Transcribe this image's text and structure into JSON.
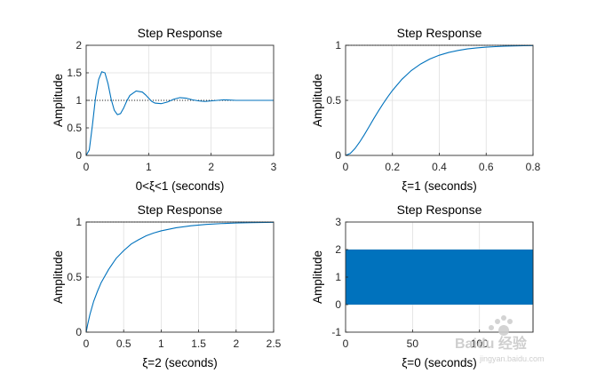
{
  "chart_data": [
    {
      "type": "line",
      "title": "Step Response",
      "xlabel": "0<ξ<1 (seconds)",
      "ylabel": "Amplitude",
      "xlim": [
        0,
        3
      ],
      "ylim": [
        0,
        2
      ],
      "xticks": [
        0,
        1,
        2,
        3
      ],
      "yticks": [
        0,
        0.5,
        1,
        1.5,
        2
      ],
      "xtick_labels": [
        "0",
        "1",
        "2",
        "3"
      ],
      "ytick_labels": [
        "0",
        "0.5",
        "1",
        "1.5",
        "2"
      ],
      "grid": true,
      "reference_line": 1,
      "color": "#0072BD",
      "series": [
        {
          "x": [
            0,
            0.05,
            0.1,
            0.15,
            0.2,
            0.25,
            0.3,
            0.35,
            0.4,
            0.45,
            0.5,
            0.55,
            0.6,
            0.65,
            0.7,
            0.8,
            0.9,
            0.95,
            1.0,
            1.05,
            1.1,
            1.2,
            1.3,
            1.4,
            1.5,
            1.6,
            1.7,
            1.8,
            1.9,
            2.0,
            2.2,
            2.4,
            2.6,
            2.8,
            3.0
          ],
          "y": [
            0,
            0.1,
            0.55,
            1.05,
            1.38,
            1.52,
            1.5,
            1.3,
            1.02,
            0.82,
            0.74,
            0.76,
            0.86,
            0.99,
            1.09,
            1.17,
            1.15,
            1.1,
            1.04,
            0.98,
            0.95,
            0.94,
            0.97,
            1.02,
            1.05,
            1.04,
            1.01,
            0.99,
            0.98,
            0.99,
            1.01,
            1.0,
            1.0,
            1.0,
            1.0
          ]
        }
      ]
    },
    {
      "type": "line",
      "title": "Step Response",
      "xlabel": "ξ=1 (seconds)",
      "ylabel": "Amplitude",
      "xlim": [
        0,
        0.8
      ],
      "ylim": [
        0,
        1
      ],
      "xticks": [
        0,
        0.2,
        0.4,
        0.6,
        0.8
      ],
      "yticks": [
        0,
        0.5,
        1
      ],
      "xtick_labels": [
        "0",
        "0.2",
        "0.4",
        "0.6",
        "0.8"
      ],
      "ytick_labels": [
        "0",
        "0.5",
        "1"
      ],
      "grid": true,
      "reference_line": 1,
      "color": "#0072BD",
      "series": [
        {
          "x": [
            0,
            0.02,
            0.04,
            0.06,
            0.08,
            0.1,
            0.12,
            0.14,
            0.16,
            0.18,
            0.2,
            0.24,
            0.28,
            0.32,
            0.36,
            0.4,
            0.44,
            0.48,
            0.52,
            0.56,
            0.6,
            0.64,
            0.68,
            0.72,
            0.76,
            0.8
          ],
          "y": [
            0,
            0.018,
            0.062,
            0.121,
            0.188,
            0.26,
            0.333,
            0.403,
            0.469,
            0.532,
            0.59,
            0.69,
            0.77,
            0.83,
            0.876,
            0.91,
            0.935,
            0.953,
            0.967,
            0.976,
            0.983,
            0.988,
            0.992,
            0.994,
            0.996,
            0.997
          ]
        }
      ]
    },
    {
      "type": "line",
      "title": "Step Response",
      "xlabel": "ξ=2 (seconds)",
      "ylabel": "Amplitude",
      "xlim": [
        0,
        2.5
      ],
      "ylim": [
        0,
        1
      ],
      "xticks": [
        0,
        0.5,
        1,
        1.5,
        2,
        2.5
      ],
      "yticks": [
        0,
        0.5,
        1
      ],
      "xtick_labels": [
        "0",
        "0.5",
        "1",
        "1.5",
        "2",
        "2.5"
      ],
      "ytick_labels": [
        "0",
        "0.5",
        "1"
      ],
      "grid": true,
      "reference_line": 1,
      "color": "#0072BD",
      "series": [
        {
          "x": [
            0,
            0.02,
            0.05,
            0.1,
            0.15,
            0.2,
            0.3,
            0.4,
            0.5,
            0.6,
            0.7,
            0.8,
            0.9,
            1.0,
            1.2,
            1.4,
            1.6,
            1.8,
            2.0,
            2.2,
            2.5
          ],
          "y": [
            0,
            0.07,
            0.16,
            0.28,
            0.37,
            0.45,
            0.57,
            0.67,
            0.74,
            0.8,
            0.84,
            0.875,
            0.9,
            0.92,
            0.948,
            0.966,
            0.978,
            0.986,
            0.991,
            0.994,
            0.997
          ]
        }
      ]
    },
    {
      "type": "line",
      "title": "Step Response",
      "xlabel": "ξ=0 (seconds)",
      "ylabel": "Amplitude",
      "xlim": [
        0,
        140
      ],
      "ylim": [
        -1,
        3
      ],
      "xticks": [
        0,
        50,
        100
      ],
      "yticks": [
        -1,
        0,
        1,
        2,
        3
      ],
      "xtick_labels": [
        "0",
        "50",
        "100"
      ],
      "ytick_labels": [
        "-1",
        "0",
        "1",
        "2",
        "3"
      ],
      "grid": true,
      "color": "#0072BD",
      "note": "undamped oscillation between 0 and 2 over the whole span, drawn as a solid band",
      "band": {
        "x_start": 0,
        "x_end": 140,
        "y_min": 0,
        "y_max": 2
      }
    }
  ],
  "watermark": {
    "text": "Baidu 经验",
    "sub": "jingyan.baidu.com"
  }
}
